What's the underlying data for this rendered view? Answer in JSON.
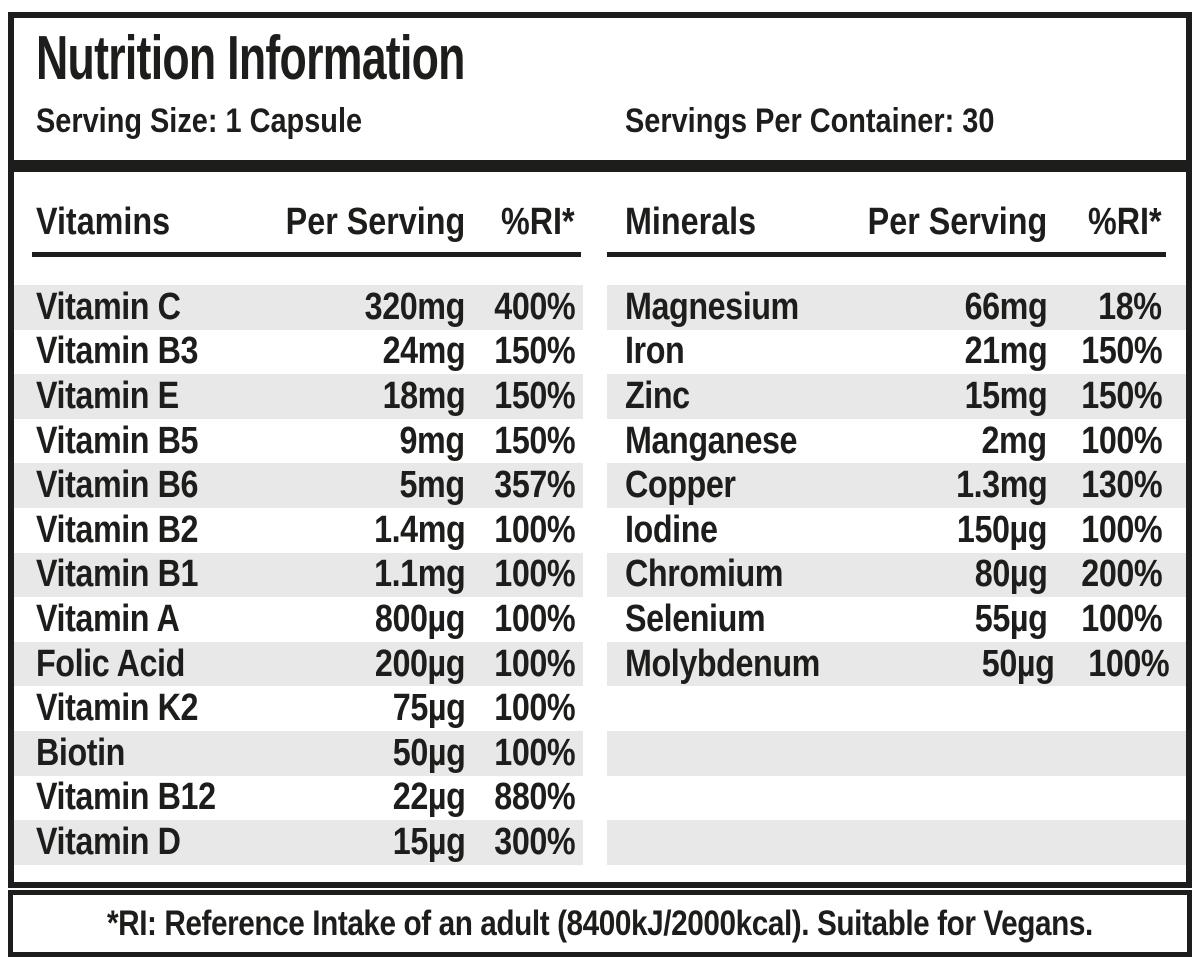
{
  "header": {
    "title": "Nutrition Information",
    "serving_size": "Serving Size: 1 Capsule",
    "servings_per_container": "Servings Per Container: 30"
  },
  "colors": {
    "ink": "#1d1d1b",
    "stripe": "#e8e8e8"
  },
  "vitamins": {
    "columns": {
      "name": "Vitamins",
      "per_serving": "Per Serving",
      "ri": "%RI*"
    },
    "rows": [
      {
        "name": "Vitamin C",
        "amount": "320mg",
        "ri": "400%"
      },
      {
        "name": "Vitamin B3",
        "amount": "24mg",
        "ri": "150%"
      },
      {
        "name": "Vitamin E",
        "amount": "18mg",
        "ri": "150%"
      },
      {
        "name": "Vitamin B5",
        "amount": "9mg",
        "ri": "150%"
      },
      {
        "name": "Vitamin B6",
        "amount": "5mg",
        "ri": "357%"
      },
      {
        "name": "Vitamin B2",
        "amount": "1.4mg",
        "ri": "100%"
      },
      {
        "name": "Vitamin B1",
        "amount": "1.1mg",
        "ri": "100%"
      },
      {
        "name": "Vitamin A",
        "amount": "800µg",
        "ri": "100%"
      },
      {
        "name": "Folic Acid",
        "amount": "200µg",
        "ri": "100%"
      },
      {
        "name": "Vitamin K2",
        "amount": "75µg",
        "ri": "100%"
      },
      {
        "name": "Biotin",
        "amount": "50µg",
        "ri": "100%"
      },
      {
        "name": "Vitamin B12",
        "amount": "22µg",
        "ri": "880%"
      },
      {
        "name": "Vitamin D",
        "amount": "15µg",
        "ri": "300%"
      }
    ],
    "empty_striped_rows": 0
  },
  "minerals": {
    "columns": {
      "name": "Minerals",
      "per_serving": "Per Serving",
      "ri": "%RI*"
    },
    "rows": [
      {
        "name": "Magnesium",
        "amount": "66mg",
        "ri": "18%"
      },
      {
        "name": "Iron",
        "amount": "21mg",
        "ri": "150%"
      },
      {
        "name": "Zinc",
        "amount": "15mg",
        "ri": "150%"
      },
      {
        "name": "Manganese",
        "amount": "2mg",
        "ri": "100%"
      },
      {
        "name": "Copper",
        "amount": "1.3mg",
        "ri": "130%"
      },
      {
        "name": "Iodine",
        "amount": "150µg",
        "ri": "100%"
      },
      {
        "name": "Chromium",
        "amount": "80µg",
        "ri": "200%"
      },
      {
        "name": "Selenium",
        "amount": "55µg",
        "ri": "100%"
      },
      {
        "name": "Molybdenum",
        "amount": "50µg",
        "ri": "100%"
      }
    ],
    "empty_striped_rows": 4
  },
  "footnote": "*RI: Reference Intake of an adult (8400kJ/2000kcal). Suitable for Vegans."
}
